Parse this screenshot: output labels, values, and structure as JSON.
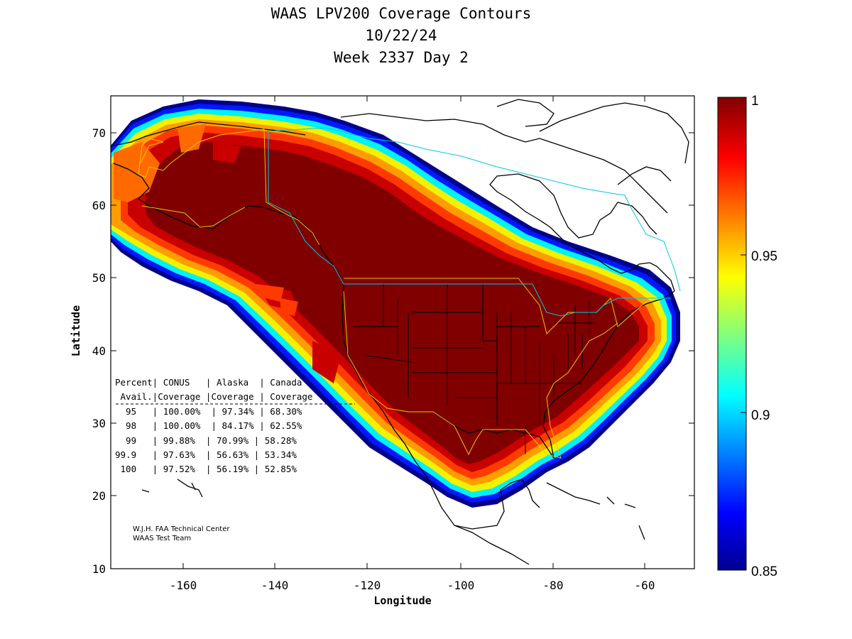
{
  "title": {
    "line1": "WAAS LPV200 Coverage Contours",
    "line2": "10/22/24",
    "line3": "Week 2337 Day 2"
  },
  "map": {
    "xlabel": "Longitude",
    "ylabel": "Latitude",
    "lon_range": [
      -174,
      -50
    ],
    "lat_range": [
      10,
      75
    ],
    "x_ticks": [
      -160,
      -140,
      -120,
      -100,
      -80,
      -60
    ],
    "y_ticks": [
      10,
      20,
      30,
      40,
      50,
      60,
      70
    ],
    "colormap": "jet",
    "colors": {
      "core": "#800000",
      "high": "#c80000",
      "mid": "#ff3a00",
      "warm": "#ff9d00",
      "yellow": "#f2f200",
      "cyan": "#00f2f2",
      "blue": "#0018ff",
      "navy": "#00008a",
      "fir_boundary": "#e6c800",
      "canada_boundary": "#00c8e6"
    }
  },
  "colorbar": {
    "min": 0.85,
    "max": 1,
    "ticks": [
      {
        "value": 1,
        "label": "1"
      },
      {
        "value": 0.95,
        "label": "0.95"
      },
      {
        "value": 0.9,
        "label": "0.9"
      },
      {
        "value": 0.85,
        "label": "0.85"
      }
    ]
  },
  "table": {
    "header1": "Percent| CONUS   | Alaska  | Canada",
    "header2": " Avail.|Coverage |Coverage | Coverage",
    "separator": "----------------------------------------",
    "rows": [
      "  95   | 100.00%  | 97.34% | 68.30%",
      "  98   | 100.00%  | 84.17% | 62.55%",
      "  99   | 99.88%  | 70.99% | 58.28%",
      "99.9   | 97.63%  | 56.63% | 53.34%",
      " 100   | 97.52%  | 56.19% | 52.85%"
    ]
  },
  "credit": {
    "line1": "W.J.H. FAA Technical Center",
    "line2": "WAAS Test Team"
  }
}
